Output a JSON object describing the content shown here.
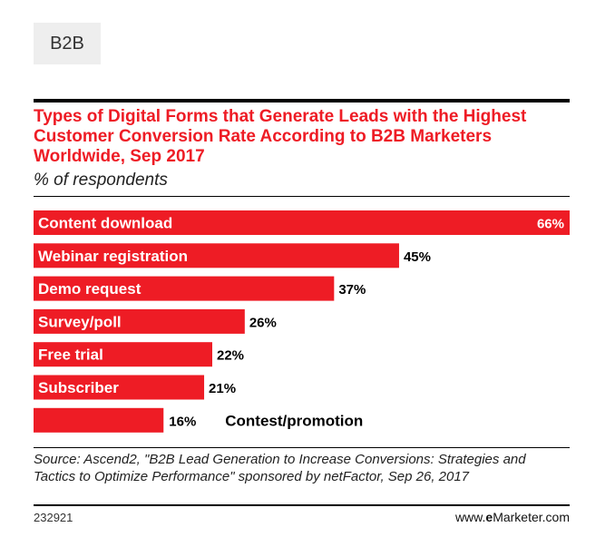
{
  "tag": "B2B",
  "brand": {
    "prefix": "www.",
    "bold": "e",
    "name": "Marketer.com"
  },
  "chart_id": "232921",
  "source": "Source: Ascend2, \"B2B Lead Generation to Increase Conversions: Strategies and Tactics to Optimize Performance\" sponsored by netFactor, Sep 26, 2017",
  "colors": {
    "accent": "#ee1c25",
    "text": "#000000"
  },
  "chart_data": {
    "type": "bar",
    "orientation": "horizontal",
    "title": "Types of Digital Forms that Generate Leads with the Highest Customer Conversion Rate According to B2B Marketers Worldwide, Sep 2017",
    "subtitle": "% of respondents",
    "categories": [
      "Content download",
      "Webinar registration",
      "Demo request",
      "Survey/poll",
      "Free trial",
      "Subscriber",
      "Contest/promotion"
    ],
    "values": [
      66,
      45,
      37,
      26,
      22,
      21,
      16
    ],
    "value_labels": [
      "66%",
      "45%",
      "37%",
      "26%",
      "22%",
      "21%",
      "16%"
    ],
    "xlim": [
      0,
      66
    ],
    "grid": false,
    "legend": "none"
  }
}
